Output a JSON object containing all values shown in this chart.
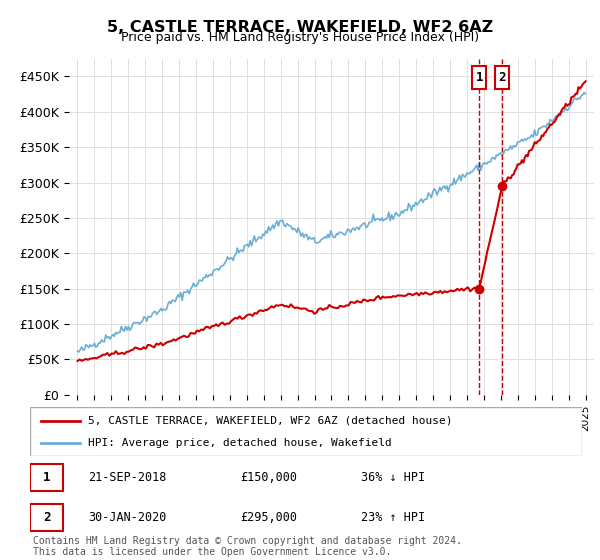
{
  "title": "5, CASTLE TERRACE, WAKEFIELD, WF2 6AZ",
  "subtitle": "Price paid vs. HM Land Registry's House Price Index (HPI)",
  "ylabel_ticks": [
    "£0",
    "£50K",
    "£100K",
    "£150K",
    "£200K",
    "£250K",
    "£300K",
    "£350K",
    "£400K",
    "£450K"
  ],
  "ytick_values": [
    0,
    50000,
    100000,
    150000,
    200000,
    250000,
    300000,
    350000,
    400000,
    450000
  ],
  "ylim": [
    0,
    475000
  ],
  "hpi_color": "#6baed6",
  "price_color": "#cc0000",
  "marker1_date": 2018.72,
  "marker1_price": 150000,
  "marker2_date": 2020.08,
  "marker2_price": 295000,
  "annotation1": [
    "1",
    "21-SEP-2018",
    "£150,000",
    "36% ↓ HPI"
  ],
  "annotation2": [
    "2",
    "30-JAN-2020",
    "£295,000",
    "23% ↑ HPI"
  ],
  "legend_label1": "5, CASTLE TERRACE, WAKEFIELD, WF2 6AZ (detached house)",
  "legend_label2": "HPI: Average price, detached house, Wakefield",
  "footer": "Contains HM Land Registry data © Crown copyright and database right 2024.\nThis data is licensed under the Open Government Licence v3.0.",
  "background_color": "#ffffff"
}
